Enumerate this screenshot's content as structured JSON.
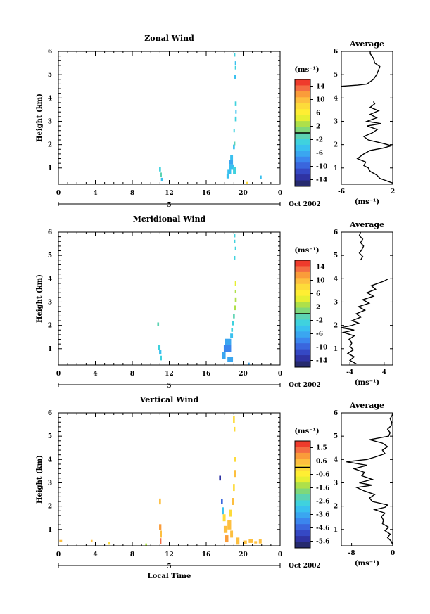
{
  "figure": {
    "date_label": "Oct 2002",
    "x_axis_label": "Local Time",
    "day_label": "5",
    "y_axis_label": "Height (km)",
    "unit_label": "(ms⁻¹)",
    "average_title": "Average"
  },
  "chart_data": [
    {
      "type": "heatmap",
      "title": "Zonal Wind",
      "ylabel": "Height (km)",
      "x_ticks": [
        "0",
        "4",
        "8",
        "12",
        "16",
        "20",
        "0"
      ],
      "x_ticks_note": "Local Time, day 5 Oct 2002; middle tick printed as 8 in the source (8)",
      "xlim": [
        0,
        24
      ],
      "y_ticks": [
        "1",
        "2",
        "3",
        "4",
        "5",
        "6"
      ],
      "ylim": [
        0.3,
        6
      ],
      "colorbar": {
        "unit": "(ms⁻¹)",
        "ticks": [
          "14",
          "10",
          "6",
          "2",
          "-2",
          "-6",
          "-10",
          "-14"
        ],
        "range": [
          -16,
          16
        ],
        "colors": [
          "#ef3b2c",
          "#f46d43",
          "#fa9c3a",
          "#fdbf3f",
          "#fddb3a",
          "#ffee33",
          "#e6ef32",
          "#aee04a",
          "#7fd87a",
          "#5cd3b2",
          "#3fd2de",
          "#39c0ef",
          "#3aa6f0",
          "#3b86ee",
          "#3a66dd",
          "#3548c4",
          "#2f33a3",
          "#262a6e"
        ]
      },
      "cells": [
        {
          "t": 10.9,
          "h": 0.95,
          "dt": 0.2,
          "dh": 0.2,
          "v": -3
        },
        {
          "t": 11.0,
          "h": 0.7,
          "dt": 0.2,
          "dh": 0.2,
          "v": 0
        },
        {
          "t": 11.1,
          "h": 0.5,
          "dt": 0.2,
          "dh": 0.15,
          "v": -4
        },
        {
          "t": 18.2,
          "h": 0.65,
          "dt": 0.25,
          "dh": 0.2,
          "v": -4
        },
        {
          "t": 18.3,
          "h": 0.85,
          "dt": 0.4,
          "dh": 0.2,
          "v": -5
        },
        {
          "t": 18.5,
          "h": 1.05,
          "dt": 0.5,
          "dh": 0.2,
          "v": -5
        },
        {
          "t": 18.5,
          "h": 1.25,
          "dt": 0.4,
          "dh": 0.2,
          "v": -6
        },
        {
          "t": 18.6,
          "h": 1.45,
          "dt": 0.3,
          "dh": 0.2,
          "v": -4
        },
        {
          "t": 18.9,
          "h": 0.9,
          "dt": 0.3,
          "dh": 0.3,
          "v": -3
        },
        {
          "t": 18.9,
          "h": 1.9,
          "dt": 0.2,
          "dh": 0.2,
          "v": -4
        },
        {
          "t": 19.0,
          "h": 2.05,
          "dt": 0.15,
          "dh": 0.15,
          "v": -1
        },
        {
          "t": 18.95,
          "h": 2.6,
          "dt": 0.15,
          "dh": 0.15,
          "v": -3
        },
        {
          "t": 19.1,
          "h": 3.1,
          "dt": 0.2,
          "dh": 0.2,
          "v": -2
        },
        {
          "t": 19.15,
          "h": 3.4,
          "dt": 0.15,
          "dh": 0.15,
          "v": -4
        },
        {
          "t": 19.1,
          "h": 3.75,
          "dt": 0.2,
          "dh": 0.2,
          "v": -3
        },
        {
          "t": 19.05,
          "h": 4.9,
          "dt": 0.15,
          "dh": 0.15,
          "v": -4
        },
        {
          "t": 19.1,
          "h": 5.3,
          "dt": 0.15,
          "dh": 0.15,
          "v": -3
        },
        {
          "t": 19.1,
          "h": 5.5,
          "dt": 0.15,
          "dh": 0.15,
          "v": -4
        },
        {
          "t": 19.0,
          "h": 5.85,
          "dt": 0.15,
          "dh": 0.15,
          "v": -3
        },
        {
          "t": 20.3,
          "h": 0.35,
          "dt": 0.2,
          "dh": 0.1,
          "v": 8
        },
        {
          "t": 21.8,
          "h": 0.6,
          "dt": 0.2,
          "dh": 0.15,
          "v": -4
        }
      ],
      "average_profile": {
        "xlim": [
          -6,
          2
        ],
        "x_ticks": [
          "-6",
          "2"
        ],
        "y_ticks": [
          "1",
          "2",
          "3",
          "4",
          "5",
          "6"
        ],
        "ylim": [
          0.3,
          6
        ],
        "x_label": "(ms⁻¹)",
        "segments": [
          {
            "h": [
              0.35,
              0.45,
              0.55,
              0.7,
              0.85,
              1.0,
              1.1,
              1.25,
              1.4,
              1.5,
              1.6,
              1.75,
              1.85,
              1.95,
              2.05,
              2.2,
              2.35,
              2.5,
              2.65,
              2.8,
              2.9,
              3.0,
              3.15,
              3.3,
              3.45,
              3.6,
              3.75,
              3.85
            ],
            "v": [
              2.0,
              1.0,
              0.0,
              -0.5,
              -1.5,
              -1.8,
              -2.5,
              -2.2,
              -3.5,
              -3.0,
              -2.5,
              -1.5,
              0.5,
              1.8,
              0.5,
              -1.8,
              -2.5,
              -1.2,
              -0.4,
              -2.0,
              0.2,
              -2.0,
              -0.5,
              -1.5,
              -0.2,
              -1.5,
              -0.8,
              -1.0
            ]
          },
          {
            "h": [
              4.5,
              4.55,
              4.6,
              4.8,
              5.0,
              5.2,
              5.35,
              5.5,
              5.7,
              5.9,
              6.0
            ],
            "v": [
              -6.0,
              -3.5,
              -2.0,
              -1.0,
              -0.5,
              -0.2,
              0.0,
              -0.8,
              -1.0,
              -1.5,
              -1.5
            ]
          }
        ]
      }
    },
    {
      "type": "heatmap",
      "title": "Meridional Wind",
      "ylabel": "Height (km)",
      "x_ticks": [
        "0",
        "4",
        "8",
        "12",
        "16",
        "20",
        "0"
      ],
      "xlim": [
        0,
        24
      ],
      "y_ticks": [
        "1",
        "2",
        "3",
        "4",
        "5",
        "6"
      ],
      "ylim": [
        0.3,
        6
      ],
      "colorbar": {
        "unit": "(ms⁻¹)",
        "ticks": [
          "14",
          "10",
          "6",
          "2",
          "-2",
          "-6",
          "-10",
          "-14"
        ],
        "range": [
          -16,
          16
        ],
        "colors": [
          "#ef3b2c",
          "#f46d43",
          "#fa9c3a",
          "#fdbf3f",
          "#fddb3a",
          "#ffee33",
          "#e6ef32",
          "#aee04a",
          "#7fd87a",
          "#5cd3b2",
          "#3fd2de",
          "#39c0ef",
          "#3aa6f0",
          "#3b86ee",
          "#3a66dd",
          "#3548c4",
          "#2f33a3",
          "#262a6e"
        ]
      },
      "cells": [
        {
          "t": 10.7,
          "h": 2.05,
          "dt": 0.2,
          "dh": 0.15,
          "v": 0
        },
        {
          "t": 10.8,
          "h": 1.05,
          "dt": 0.25,
          "dh": 0.2,
          "v": -3
        },
        {
          "t": 10.9,
          "h": 0.85,
          "dt": 0.25,
          "dh": 0.2,
          "v": -4
        },
        {
          "t": 11.0,
          "h": 0.6,
          "dt": 0.2,
          "dh": 0.2,
          "v": -2
        },
        {
          "t": 17.7,
          "h": 0.7,
          "dt": 0.4,
          "dh": 0.3,
          "v": -7
        },
        {
          "t": 17.9,
          "h": 1.0,
          "dt": 0.8,
          "dh": 0.3,
          "v": -8
        },
        {
          "t": 18.0,
          "h": 1.3,
          "dt": 0.7,
          "dh": 0.25,
          "v": -7
        },
        {
          "t": 18.3,
          "h": 0.55,
          "dt": 0.6,
          "dh": 0.2,
          "v": -6
        },
        {
          "t": 18.6,
          "h": 1.55,
          "dt": 0.3,
          "dh": 0.2,
          "v": -5
        },
        {
          "t": 18.7,
          "h": 1.8,
          "dt": 0.2,
          "dh": 0.15,
          "v": -3
        },
        {
          "t": 18.8,
          "h": 2.1,
          "dt": 0.2,
          "dh": 0.2,
          "v": -3
        },
        {
          "t": 18.9,
          "h": 2.4,
          "dt": 0.2,
          "dh": 0.2,
          "v": -1
        },
        {
          "t": 19.0,
          "h": 2.75,
          "dt": 0.2,
          "dh": 0.2,
          "v": 2
        },
        {
          "t": 19.1,
          "h": 3.1,
          "dt": 0.2,
          "dh": 0.2,
          "v": 3
        },
        {
          "t": 19.1,
          "h": 3.45,
          "dt": 0.15,
          "dh": 0.15,
          "v": 2
        },
        {
          "t": 19.1,
          "h": 3.8,
          "dt": 0.15,
          "dh": 0.2,
          "v": 4
        },
        {
          "t": 19.0,
          "h": 4.9,
          "dt": 0.15,
          "dh": 0.15,
          "v": -2
        },
        {
          "t": 19.1,
          "h": 5.3,
          "dt": 0.15,
          "dh": 0.15,
          "v": -3
        },
        {
          "t": 19.0,
          "h": 5.6,
          "dt": 0.15,
          "dh": 0.15,
          "v": -2
        },
        {
          "t": 19.0,
          "h": 5.85,
          "dt": 0.15,
          "dh": 0.15,
          "v": -3
        },
        {
          "t": 20.5,
          "h": 0.35,
          "dt": 0.2,
          "dh": 0.1,
          "v": -6
        }
      ],
      "average_profile": {
        "xlim": [
          -6,
          6
        ],
        "x_ticks": [
          "-4",
          "4"
        ],
        "y_ticks": [
          "1",
          "2",
          "3",
          "4",
          "5",
          "6"
        ],
        "ylim": [
          0.3,
          6
        ],
        "x_label": "(ms⁻¹)",
        "segments": [
          {
            "h": [
              0.35,
              0.5,
              0.65,
              0.8,
              0.95,
              1.1,
              1.25,
              1.4,
              1.55,
              1.7,
              1.8,
              1.9,
              2.0,
              2.1,
              2.2,
              2.35,
              2.5,
              2.65,
              2.8,
              2.95,
              3.1,
              3.25,
              3.4,
              3.55,
              3.7,
              3.8,
              3.9,
              4.0
            ],
            "v": [
              -2.5,
              -4.0,
              -3.0,
              -4.5,
              -3.2,
              -4.0,
              -3.5,
              -4.2,
              -3.0,
              -5.5,
              -3.0,
              -6.0,
              -3.5,
              -2.0,
              -3.5,
              -1.5,
              -2.5,
              -0.5,
              -2.0,
              0.5,
              -1.0,
              1.5,
              0.0,
              2.0,
              1.0,
              2.5,
              4.0,
              5.0
            ]
          },
          {
            "h": [
              4.8,
              4.95,
              5.1,
              5.25,
              5.4,
              5.55,
              5.7,
              5.85,
              6.0
            ],
            "v": [
              -1.5,
              -1.0,
              -1.8,
              -1.2,
              -0.8,
              -1.5,
              -1.0,
              -1.8,
              -1.5
            ]
          }
        ]
      }
    },
    {
      "type": "heatmap",
      "title": "Vertical Wind",
      "ylabel": "Height (km)",
      "xlabel": "Local Time",
      "x_ticks": [
        "0",
        "4",
        "8",
        "12",
        "16",
        "20",
        "0"
      ],
      "xlim": [
        0,
        24
      ],
      "y_ticks": [
        "1",
        "2",
        "3",
        "4",
        "5",
        "6"
      ],
      "ylim": [
        0.3,
        6
      ],
      "colorbar": {
        "unit": "(ms⁻¹)",
        "ticks": [
          "1.5",
          "0.6",
          "-0.6",
          "-1.6",
          "-2.6",
          "-3.6",
          "-4.6",
          "-5.6"
        ],
        "range": [
          -6.1,
          2.0
        ],
        "colors": [
          "#ef3b2c",
          "#f46d43",
          "#fa9c3a",
          "#fdbf3f",
          "#fddb3a",
          "#ffee33",
          "#e6ef32",
          "#aee04a",
          "#7fd87a",
          "#5cd3b2",
          "#3fd2de",
          "#39c0ef",
          "#3aa6f0",
          "#3b86ee",
          "#3a66dd",
          "#3548c4",
          "#2f33a3",
          "#262a6e"
        ]
      },
      "cells": [
        {
          "t": 0.1,
          "h": 0.5,
          "dt": 0.3,
          "dh": 0.1,
          "v": 0.4
        },
        {
          "t": 3.5,
          "h": 0.5,
          "dt": 0.2,
          "dh": 0.1,
          "v": 0.6
        },
        {
          "t": 5.4,
          "h": 0.4,
          "dt": 0.2,
          "dh": 0.1,
          "v": -0.2
        },
        {
          "t": 9.4,
          "h": 0.35,
          "dt": 0.2,
          "dh": 0.1,
          "v": -1.2
        },
        {
          "t": 10.9,
          "h": 2.2,
          "dt": 0.2,
          "dh": 0.25,
          "v": 0.6
        },
        {
          "t": 10.9,
          "h": 1.1,
          "dt": 0.25,
          "dh": 0.25,
          "v": 0.8
        },
        {
          "t": 11.0,
          "h": 0.8,
          "dt": 0.2,
          "dh": 0.3,
          "v": 0.3
        },
        {
          "t": 11.0,
          "h": 0.5,
          "dt": 0.15,
          "dh": 0.25,
          "v": 1.5
        },
        {
          "t": 17.4,
          "h": 3.2,
          "dt": 0.2,
          "dh": 0.2,
          "v": -5.5
        },
        {
          "t": 17.6,
          "h": 2.2,
          "dt": 0.2,
          "dh": 0.2,
          "v": -4.6
        },
        {
          "t": 17.7,
          "h": 1.8,
          "dt": 0.2,
          "dh": 0.3,
          "v": -3.0
        },
        {
          "t": 17.8,
          "h": 1.5,
          "dt": 0.3,
          "dh": 0.3,
          "v": 0.0
        },
        {
          "t": 17.9,
          "h": 1.0,
          "dt": 0.4,
          "dh": 0.3,
          "v": 0.5
        },
        {
          "t": 18.0,
          "h": 0.6,
          "dt": 0.4,
          "dh": 0.3,
          "v": 0.8
        },
        {
          "t": 18.3,
          "h": 1.2,
          "dt": 0.4,
          "dh": 0.4,
          "v": 0.3
        },
        {
          "t": 18.5,
          "h": 1.7,
          "dt": 0.3,
          "dh": 0.3,
          "v": 0.0
        },
        {
          "t": 18.6,
          "h": 0.8,
          "dt": 0.3,
          "dh": 0.3,
          "v": 0.5
        },
        {
          "t": 18.8,
          "h": 2.2,
          "dt": 0.2,
          "dh": 0.3,
          "v": 0.3
        },
        {
          "t": 18.9,
          "h": 2.8,
          "dt": 0.2,
          "dh": 0.3,
          "v": 0.2
        },
        {
          "t": 19.0,
          "h": 3.4,
          "dt": 0.2,
          "dh": 0.3,
          "v": 0.4
        },
        {
          "t": 19.05,
          "h": 4.0,
          "dt": 0.15,
          "dh": 0.2,
          "v": 0.2
        },
        {
          "t": 18.9,
          "h": 5.7,
          "dt": 0.2,
          "dh": 0.3,
          "v": 0.0
        },
        {
          "t": 19.0,
          "h": 5.3,
          "dt": 0.15,
          "dh": 0.2,
          "v": 0.2
        },
        {
          "t": 19.2,
          "h": 0.5,
          "dt": 0.4,
          "dh": 0.3,
          "v": 0.3
        },
        {
          "t": 20.0,
          "h": 0.45,
          "dt": 0.4,
          "dh": 0.15,
          "v": 0.5
        },
        {
          "t": 20.6,
          "h": 0.5,
          "dt": 0.5,
          "dh": 0.15,
          "v": 0.3
        },
        {
          "t": 21.2,
          "h": 0.45,
          "dt": 0.3,
          "dh": 0.1,
          "v": 0.6
        },
        {
          "t": 21.7,
          "h": 0.5,
          "dt": 0.3,
          "dh": 0.2,
          "v": 0.4
        }
      ],
      "average_profile": {
        "xlim": [
          -10,
          0
        ],
        "x_ticks": [
          "-8",
          "0"
        ],
        "y_ticks": [
          "1",
          "2",
          "3",
          "4",
          "5",
          "6"
        ],
        "ylim": [
          0.3,
          6
        ],
        "x_label": "(ms⁻¹)",
        "segments": [
          {
            "h": [
              0.35,
              0.5,
              0.65,
              0.8,
              0.95,
              1.1,
              1.25,
              1.4,
              1.55,
              1.7,
              1.85,
              1.95,
              2.05,
              2.2,
              2.35,
              2.5,
              2.65,
              2.8,
              2.9,
              3.0,
              3.15,
              3.3,
              3.45,
              3.6,
              3.75,
              3.9,
              4.0,
              4.1,
              4.25,
              4.4,
              4.55,
              4.7,
              4.85,
              5.0,
              5.15,
              5.3,
              5.45,
              5.6,
              5.75,
              5.9,
              6.0
            ],
            "v": [
              0.0,
              -0.3,
              -1.0,
              -0.5,
              -1.5,
              -0.8,
              -2.0,
              -1.8,
              -2.2,
              -1.5,
              -3.5,
              -1.5,
              -1.0,
              -4.0,
              -4.5,
              -3.5,
              -5.5,
              -7.0,
              -4.0,
              -6.5,
              -4.0,
              -6.0,
              -5.5,
              -7.5,
              -5.0,
              -9.0,
              -5.0,
              -3.5,
              -1.5,
              -2.0,
              -1.0,
              -2.0,
              -4.5,
              -0.8,
              -0.5,
              -1.0,
              -0.3,
              -0.2,
              -0.5,
              -0.1,
              0.0
            ]
          }
        ]
      }
    }
  ]
}
